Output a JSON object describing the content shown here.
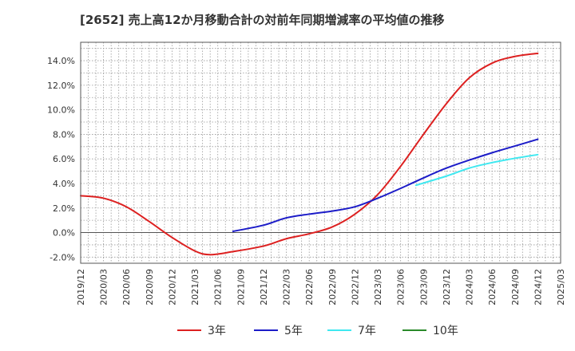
{
  "chart_data": {
    "type": "line",
    "title": "[2652]  売上高12か月移動合計の対前年同期増減率の平均値の推移",
    "y_ticks": [
      "-2.0%",
      "0.0%",
      "2.0%",
      "4.0%",
      "6.0%",
      "8.0%",
      "10.0%",
      "12.0%",
      "14.0%"
    ],
    "y_tick_values": [
      -2,
      0,
      2,
      4,
      6,
      8,
      10,
      12,
      14
    ],
    "ylim": [
      -2.5,
      15.5
    ],
    "x_ticks": [
      "2019/12",
      "2020/03",
      "2020/06",
      "2020/09",
      "2020/12",
      "2021/03",
      "2021/06",
      "2021/09",
      "2021/12",
      "2022/03",
      "2022/06",
      "2022/09",
      "2022/12",
      "2023/03",
      "2023/06",
      "2023/09",
      "2023/12",
      "2024/03",
      "2024/06",
      "2024/09",
      "2024/12",
      "2025/03"
    ],
    "grid": true,
    "legend_position": "bottom",
    "series": [
      {
        "name": "3年",
        "color": "#dd2020",
        "points": [
          [
            "2019/12",
            3.0
          ],
          [
            "2020/03",
            2.8
          ],
          [
            "2020/06",
            2.1
          ],
          [
            "2020/09",
            0.9
          ],
          [
            "2020/12",
            -0.4
          ],
          [
            "2021/03",
            -1.5
          ],
          [
            "2021/05",
            -1.8
          ],
          [
            "2021/08",
            -1.55
          ],
          [
            "2021/12",
            -1.1
          ],
          [
            "2022/03",
            -0.5
          ],
          [
            "2022/06",
            -0.1
          ],
          [
            "2022/09",
            0.45
          ],
          [
            "2022/12",
            1.5
          ],
          [
            "2023/03",
            3.1
          ],
          [
            "2023/06",
            5.4
          ],
          [
            "2023/09",
            8.0
          ],
          [
            "2023/12",
            10.5
          ],
          [
            "2024/03",
            12.6
          ],
          [
            "2024/06",
            13.8
          ],
          [
            "2024/09",
            14.35
          ],
          [
            "2024/12",
            14.6
          ]
        ]
      },
      {
        "name": "5年",
        "color": "#1c1cc8",
        "points": [
          [
            "2021/08",
            0.1
          ],
          [
            "2021/12",
            0.6
          ],
          [
            "2022/03",
            1.2
          ],
          [
            "2022/06",
            1.5
          ],
          [
            "2022/09",
            1.75
          ],
          [
            "2022/12",
            2.1
          ],
          [
            "2023/03",
            2.8
          ],
          [
            "2023/06",
            3.6
          ],
          [
            "2023/09",
            4.45
          ],
          [
            "2023/12",
            5.25
          ],
          [
            "2024/03",
            5.9
          ],
          [
            "2024/06",
            6.5
          ],
          [
            "2024/09",
            7.05
          ],
          [
            "2024/12",
            7.6
          ]
        ]
      },
      {
        "name": "7年",
        "color": "#3fe8f0",
        "points": [
          [
            "2023/08",
            3.85
          ],
          [
            "2023/12",
            4.6
          ],
          [
            "2024/03",
            5.25
          ],
          [
            "2024/06",
            5.7
          ],
          [
            "2024/09",
            6.05
          ],
          [
            "2024/12",
            6.35
          ]
        ]
      },
      {
        "name": "10年",
        "color": "#2a8a2a",
        "points": []
      }
    ]
  }
}
